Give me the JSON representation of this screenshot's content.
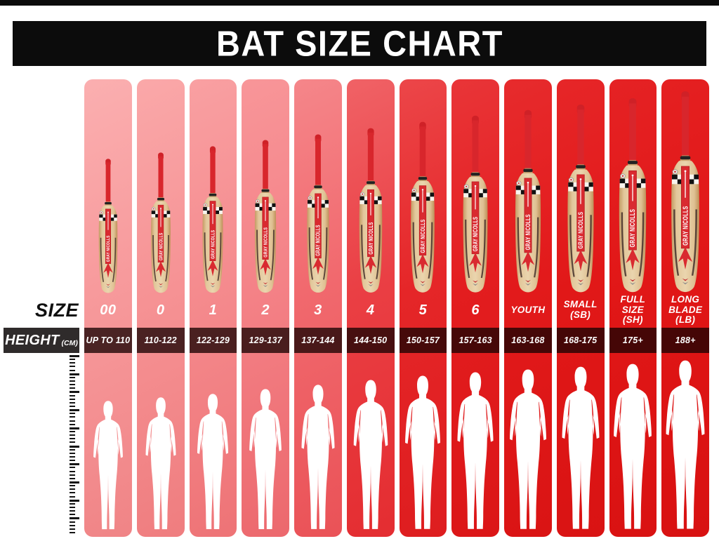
{
  "header": {
    "title": "BAT SIZE CHART"
  },
  "row_labels": {
    "size": "SIZE",
    "height": "HEIGHT",
    "height_unit": "(CM)"
  },
  "bat": {
    "brand": "GRAY NICOLLS"
  },
  "colors": {
    "header_bg": "#0c0c0c",
    "lightest_column": "#f79a9c",
    "darkest_column": "#e01616",
    "height_cell_overlay": "rgba(26,3,3,0.78)",
    "height_caption_bg": "#2f2b2b",
    "silhouette": "#ffffff",
    "bat_handle_red": "#d8262c",
    "bat_wood": "#e2c79b"
  },
  "columns": [
    {
      "size": "00",
      "height": "UP TO 110",
      "bat_h": 195,
      "man_h": 186,
      "c1": "#fbafb0",
      "c2": "#f79a9c",
      "c3": "#f08486"
    },
    {
      "size": "0",
      "height": "110-122",
      "bat_h": 204,
      "man_h": 191,
      "c1": "#faa8a9",
      "c2": "#f69395",
      "c3": "#ef7d7f"
    },
    {
      "size": "1",
      "height": "122-129",
      "bat_h": 213,
      "man_h": 196,
      "c1": "#f9a0a2",
      "c2": "#f58b8e",
      "c3": "#ee7376"
    },
    {
      "size": "2",
      "height": "129-137",
      "bat_h": 222,
      "man_h": 203,
      "c1": "#f89699",
      "c2": "#f48287",
      "c3": "#ec686d"
    },
    {
      "size": "3",
      "height": "137-144",
      "bat_h": 230,
      "man_h": 209,
      "c1": "#f5868a",
      "c2": "#f1696e",
      "c3": "#ea5257"
    },
    {
      "size": "4",
      "height": "144-150",
      "bat_h": 239,
      "man_h": 216,
      "c1": "#f06266",
      "c2": "#ea3f44",
      "c3": "#e42d31"
    },
    {
      "size": "5",
      "height": "150-157",
      "bat_h": 248,
      "man_h": 222,
      "c1": "#ec4649",
      "c2": "#e52628",
      "c3": "#de1d1f"
    },
    {
      "size": "6",
      "height": "157-163",
      "bat_h": 257,
      "man_h": 227,
      "c1": "#e93538",
      "c2": "#e31d1f",
      "c3": "#db1617"
    },
    {
      "size": "YOUTH",
      "height": "163-168",
      "bat_h": 265,
      "man_h": 231,
      "c1": "#e72b2d",
      "c2": "#e21a1b",
      "c3": "#da1414"
    },
    {
      "size": "SMALL\n(SB)",
      "height": "168-175",
      "bat_h": 273,
      "man_h": 235,
      "c1": "#e62628",
      "c2": "#e11818",
      "c3": "#d91313"
    },
    {
      "size": "FULL\nSIZE\n(SH)",
      "height": "175+",
      "bat_h": 282,
      "man_h": 239,
      "c1": "#e52224",
      "c2": "#e11717",
      "c3": "#d91212"
    },
    {
      "size": "LONG\nBLADE\n(LB)",
      "height": "188+",
      "bat_h": 292,
      "man_h": 244,
      "c1": "#e52021",
      "c2": "#e01616",
      "c3": "#d81111"
    }
  ],
  "chart_data": {
    "type": "table",
    "title": "BAT SIZE CHART",
    "columns": [
      "SIZE",
      "HEIGHT (CM)"
    ],
    "rows": [
      [
        "00",
        "UP TO 110"
      ],
      [
        "0",
        "110-122"
      ],
      [
        "1",
        "122-129"
      ],
      [
        "2",
        "129-137"
      ],
      [
        "3",
        "137-144"
      ],
      [
        "4",
        "144-150"
      ],
      [
        "5",
        "150-157"
      ],
      [
        "6",
        "157-163"
      ],
      [
        "YOUTH",
        "163-168"
      ],
      [
        "SMALL (SB)",
        "168-175"
      ],
      [
        "FULL SIZE (SH)",
        "175+"
      ],
      [
        "LONG BLADE (LB)",
        "188+"
      ]
    ],
    "layout": "12 vertical columns, pink-to-red gradient left to right; bat size and human silhouette grow with height range"
  }
}
